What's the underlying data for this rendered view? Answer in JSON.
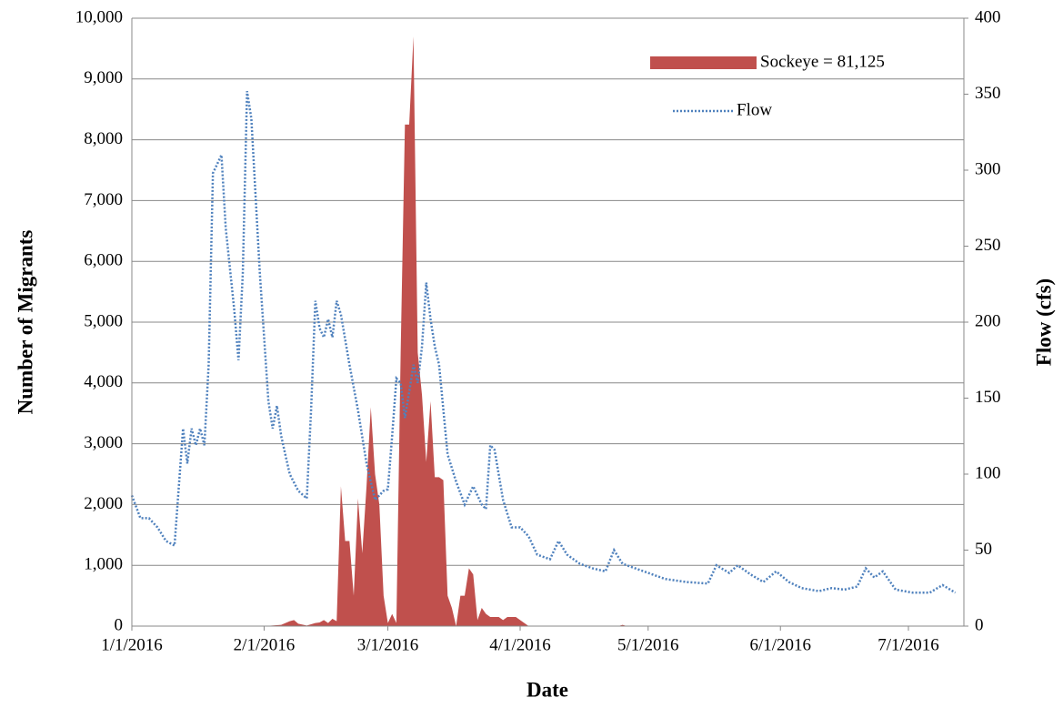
{
  "chart_data": {
    "type": "area-line",
    "xlabel": "Date",
    "ylabel": "Number of Migrants",
    "y2label": "Flow (cfs)",
    "xlim": [
      "1/1/2016",
      "7/14/2016"
    ],
    "xticks": [
      "1/1/2016",
      "2/1/2016",
      "3/1/2016",
      "4/1/2016",
      "5/1/2016",
      "6/1/2016",
      "7/1/2016"
    ],
    "ylim": [
      0,
      10000
    ],
    "yticks": [
      0,
      {
        "value": 1000,
        "label": "1,000"
      },
      {
        "value": 2000,
        "label": "2,000"
      },
      {
        "value": 3000,
        "label": "3,000"
      },
      {
        "value": 4000,
        "label": "4,000"
      },
      {
        "value": 5000,
        "label": "5,000"
      },
      {
        "value": 6000,
        "label": "6,000"
      },
      {
        "value": 7000,
        "label": "7,000"
      },
      {
        "value": 8000,
        "label": "8,000"
      },
      {
        "value": 9000,
        "label": "9,000"
      },
      {
        "value": 10000,
        "label": "10,000"
      }
    ],
    "y2lim": [
      0,
      400
    ],
    "y2ticks": [
      0,
      50,
      100,
      150,
      200,
      250,
      300,
      350,
      400
    ],
    "grid": true,
    "legend": "upper right",
    "series": [
      {
        "name": "Sockeye = 81,125",
        "type": "area",
        "color": "#c0504d",
        "x": [
          "1/1/2016",
          "2/1/2016",
          "2/5/2016",
          "2/7/2016",
          "2/8/2016",
          "2/9/2016",
          "2/11/2016",
          "2/13/2016",
          "2/14/2016",
          "2/15/2016",
          "2/16/2016",
          "2/17/2016",
          "2/18/2016",
          "2/19/2016",
          "2/20/2016",
          "2/21/2016",
          "2/22/2016",
          "2/23/2016",
          "2/24/2016",
          "2/25/2016",
          "2/26/2016",
          "2/27/2016",
          "2/28/2016",
          "2/29/2016",
          "3/1/2016",
          "3/2/2016",
          "3/3/2016",
          "3/4/2016",
          "3/5/2016",
          "3/6/2016",
          "3/7/2016",
          "3/8/2016",
          "3/9/2016",
          "3/10/2016",
          "3/11/2016",
          "3/12/2016",
          "3/13/2016",
          "3/14/2016",
          "3/15/2016",
          "3/16/2016",
          "3/17/2016",
          "3/18/2016",
          "3/19/2016",
          "3/20/2016",
          "3/21/2016",
          "3/22/2016",
          "3/23/2016",
          "3/24/2016",
          "3/25/2016",
          "3/26/2016",
          "3/27/2016",
          "3/28/2016",
          "3/29/2016",
          "3/30/2016",
          "3/31/2016",
          "4/1/2016",
          "4/3/2016",
          "4/24/2016",
          "4/25/2016",
          "4/26/2016",
          "7/14/2016"
        ],
        "values": [
          0,
          0,
          20,
          80,
          100,
          40,
          10,
          50,
          60,
          100,
          50,
          120,
          80,
          2300,
          1400,
          1400,
          500,
          2100,
          1200,
          2300,
          3600,
          2500,
          2000,
          500,
          50,
          200,
          50,
          4500,
          8250,
          8250,
          9700,
          4500,
          3800,
          2700,
          3700,
          2450,
          2450,
          2400,
          500,
          300,
          0,
          500,
          500,
          950,
          850,
          100,
          300,
          200,
          150,
          150,
          150,
          100,
          150,
          150,
          150,
          100,
          0,
          0,
          20,
          0,
          0
        ]
      },
      {
        "name": "Flow",
        "type": "line",
        "axis": "y2",
        "color": "#4f81bd",
        "x": [
          "1/1/2016",
          "1/3/2016",
          "1/5/2016",
          "1/7/2016",
          "1/9/2016",
          "1/11/2016",
          "1/13/2016",
          "1/14/2016",
          "1/15/2016",
          "1/16/2016",
          "1/17/2016",
          "1/18/2016",
          "1/19/2016",
          "1/20/2016",
          "1/22/2016",
          "1/23/2016",
          "1/25/2016",
          "1/26/2016",
          "1/27/2016",
          "1/28/2016",
          "1/29/2016",
          "1/31/2016",
          "2/2/2016",
          "2/3/2016",
          "2/4/2016",
          "2/5/2016",
          "2/7/2016",
          "2/9/2016",
          "2/11/2016",
          "2/12/2016",
          "2/13/2016",
          "2/14/2016",
          "2/15/2016",
          "2/16/2016",
          "2/17/2016",
          "2/18/2016",
          "2/19/2016",
          "2/21/2016",
          "2/23/2016",
          "2/25/2016",
          "2/27/2016",
          "2/29/2016",
          "3/1/2016",
          "3/2/2016",
          "3/3/2016",
          "3/4/2016",
          "3/5/2016",
          "3/6/2016",
          "3/7/2016",
          "3/8/2016",
          "3/9/2016",
          "3/10/2016",
          "3/11/2016",
          "3/12/2016",
          "3/13/2016",
          "3/15/2016",
          "3/17/2016",
          "3/19/2016",
          "3/21/2016",
          "3/23/2016",
          "3/24/2016",
          "3/25/2016",
          "3/26/2016",
          "3/28/2016",
          "3/30/2016",
          "4/1/2016",
          "4/3/2016",
          "4/5/2016",
          "4/8/2016",
          "4/10/2016",
          "4/12/2016",
          "4/15/2016",
          "4/18/2016",
          "4/21/2016",
          "4/23/2016",
          "4/25/2016",
          "4/28/2016",
          "5/1/2016",
          "5/5/2016",
          "5/10/2016",
          "5/15/2016",
          "5/17/2016",
          "5/20/2016",
          "5/22/2016",
          "5/25/2016",
          "5/28/2016",
          "5/31/2016",
          "6/3/2016",
          "6/6/2016",
          "6/10/2016",
          "6/13/2016",
          "6/16/2016",
          "6/19/2016",
          "6/21/2016",
          "6/23/2016",
          "6/25/2016",
          "6/28/2016",
          "7/2/2016",
          "7/6/2016",
          "7/9/2016",
          "7/12/2016"
        ],
        "values": [
          86,
          71,
          71,
          65,
          56,
          53,
          130,
          107,
          130,
          119,
          130,
          119,
          172,
          298,
          310,
          262,
          208,
          175,
          232,
          352,
          334,
          232,
          148,
          130,
          145,
          125,
          100,
          89,
          84,
          142,
          214,
          196,
          190,
          202,
          190,
          214,
          205,
          172,
          142,
          107,
          83,
          89,
          90,
          125,
          163,
          160,
          137,
          154,
          172,
          160,
          184,
          226,
          202,
          184,
          172,
          113,
          95,
          80,
          92,
          80,
          77,
          119,
          116,
          83,
          65,
          65,
          59,
          47,
          44,
          56,
          47,
          41,
          38,
          36,
          50,
          41,
          38,
          35,
          31,
          29,
          28,
          40,
          35,
          40,
          34,
          29,
          36,
          29,
          25,
          23,
          25,
          24,
          26,
          38,
          32,
          36,
          24,
          22,
          22,
          27,
          22
        ]
      }
    ]
  }
}
